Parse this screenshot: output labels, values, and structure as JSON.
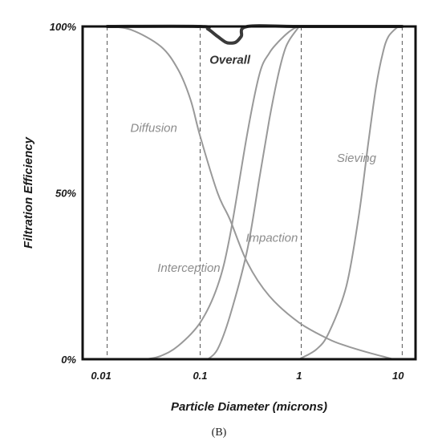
{
  "chart_data": {
    "type": "line",
    "xscale": "log",
    "xlim": [
      0.0065,
      15
    ],
    "ylim": [
      0,
      100
    ],
    "xlabel": "Particle Diameter (microns)",
    "ylabel": "Filtration Efficiency",
    "x_ticks": [
      {
        "value": 0.01,
        "label": "0.01"
      },
      {
        "value": 0.1,
        "label": "0.1"
      },
      {
        "value": 1,
        "label": "1"
      },
      {
        "value": 10,
        "label": "10"
      }
    ],
    "y_ticks": [
      {
        "value": 0,
        "label": "0%"
      },
      {
        "value": 50,
        "label": "50%"
      },
      {
        "value": 100,
        "label": "100%"
      }
    ],
    "vertical_reference_lines": [
      0.0115,
      0.1,
      1.05,
      11.0
    ],
    "series": [
      {
        "name": "Diffusion",
        "x": [
          0.0115,
          0.02,
          0.04,
          0.06,
          0.08,
          0.1,
          0.15,
          0.2,
          0.3,
          0.5,
          1.0,
          2.0,
          3.0,
          5.0,
          9.0
        ],
        "y": [
          100,
          99,
          94,
          87,
          78,
          67,
          50,
          42,
          29,
          19,
          11,
          6,
          4,
          2,
          0
        ]
      },
      {
        "name": "Interception",
        "x": [
          0.0285,
          0.04,
          0.06,
          0.1,
          0.15,
          0.2,
          0.3,
          0.4,
          0.5,
          0.6,
          0.7,
          0.8,
          0.9,
          1.0
        ],
        "y": [
          0,
          1,
          4,
          11,
          22,
          37,
          68,
          86,
          92,
          95,
          97,
          98.5,
          99.5,
          100
        ]
      },
      {
        "name": "Impaction",
        "x": [
          0.12,
          0.15,
          0.2,
          0.3,
          0.4,
          0.5,
          0.6,
          0.7,
          0.8,
          1.0
        ],
        "y": [
          0,
          3,
          13,
          33,
          55,
          72,
          84,
          92,
          96,
          100
        ]
      },
      {
        "name": "Sieving",
        "x": [
          1.0,
          1.5,
          2.0,
          3.0,
          4.0,
          5.0,
          6.0,
          7.0,
          8.0,
          10.0
        ],
        "y": [
          0,
          3,
          8,
          22,
          43,
          65,
          82,
          92,
          97,
          100
        ]
      },
      {
        "name": "Overall",
        "x": [
          0.0115,
          0.1,
          0.12,
          0.15,
          0.18,
          0.2,
          0.23,
          0.26,
          0.3,
          1.05,
          11.0
        ],
        "y": [
          100,
          100,
          99.2,
          97,
          95.3,
          95,
          95.3,
          97,
          100,
          100,
          100
        ]
      }
    ],
    "annotations": [
      {
        "text": "Overall",
        "x": 0.2,
        "y": 90
      },
      {
        "text": "Diffusion",
        "x": 0.034,
        "y": 69.5
      },
      {
        "text": "Sieving",
        "x": 3.8,
        "y": 60.5
      },
      {
        "text": "Impaction",
        "x": 0.53,
        "y": 36.5
      },
      {
        "text": "Interception",
        "x": 0.077,
        "y": 27.5
      }
    ]
  },
  "caption": "(B)"
}
